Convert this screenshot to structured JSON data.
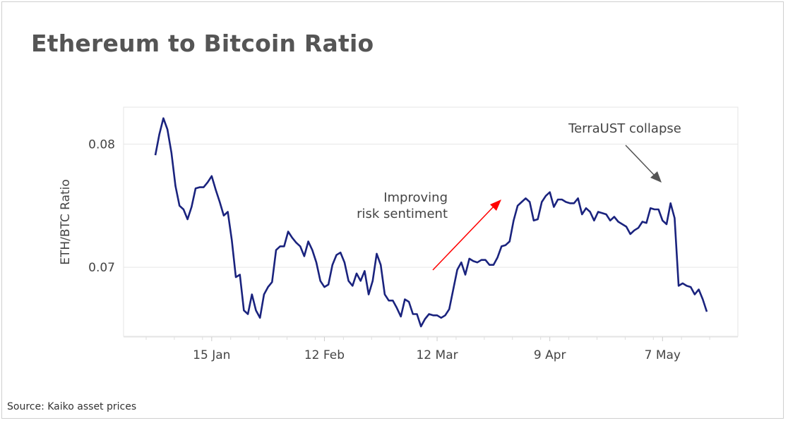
{
  "title": "Ethereum to Bitcoin Ratio",
  "source": "Source: Kaiko asset prices",
  "chart_data": {
    "type": "line",
    "title": "Ethereum to Bitcoin Ratio",
    "xlabel": "",
    "ylabel": "ETH/BTC Ratio",
    "ylim": [
      0.0644,
      0.083
    ],
    "yticks": [
      0.07,
      0.08
    ],
    "ytick_labels": [
      "0.07",
      "0.08"
    ],
    "xticks": [
      "15 Jan",
      "12 Feb",
      "12 Mar",
      "9 Apr",
      "7 May"
    ],
    "grid": "horizontal",
    "line_color": "#1a237e",
    "x": [
      "1 Jan",
      "2 Jan",
      "3 Jan",
      "4 Jan",
      "5 Jan",
      "6 Jan",
      "7 Jan",
      "8 Jan",
      "9 Jan",
      "10 Jan",
      "11 Jan",
      "12 Jan",
      "13 Jan",
      "14 Jan",
      "15 Jan",
      "16 Jan",
      "17 Jan",
      "18 Jan",
      "19 Jan",
      "20 Jan",
      "21 Jan",
      "22 Jan",
      "23 Jan",
      "24 Jan",
      "25 Jan",
      "26 Jan",
      "27 Jan",
      "28 Jan",
      "29 Jan",
      "30 Jan",
      "31 Jan",
      "1 Feb",
      "2 Feb",
      "3 Feb",
      "4 Feb",
      "5 Feb",
      "6 Feb",
      "7 Feb",
      "8 Feb",
      "9 Feb",
      "10 Feb",
      "11 Feb",
      "12 Feb",
      "13 Feb",
      "14 Feb",
      "15 Feb",
      "16 Feb",
      "17 Feb",
      "18 Feb",
      "19 Feb",
      "20 Feb",
      "21 Feb",
      "22 Feb",
      "23 Feb",
      "24 Feb",
      "25 Feb",
      "26 Feb",
      "27 Feb",
      "28 Feb",
      "1 Mar",
      "2 Mar",
      "3 Mar",
      "4 Mar",
      "5 Mar",
      "6 Mar",
      "7 Mar",
      "8 Mar",
      "9 Mar",
      "10 Mar",
      "11 Mar",
      "12 Mar",
      "13 Mar",
      "14 Mar",
      "15 Mar",
      "16 Mar",
      "17 Mar",
      "18 Mar",
      "19 Mar",
      "20 Mar",
      "21 Mar",
      "22 Mar",
      "23 Mar",
      "24 Mar",
      "25 Mar",
      "26 Mar",
      "27 Mar",
      "28 Mar",
      "29 Mar",
      "30 Mar",
      "31 Mar",
      "1 Apr",
      "2 Apr",
      "3 Apr",
      "4 Apr",
      "5 Apr",
      "6 Apr",
      "7 Apr",
      "8 Apr",
      "9 Apr",
      "10 Apr",
      "11 Apr",
      "12 Apr",
      "13 Apr",
      "14 Apr",
      "15 Apr",
      "16 Apr",
      "17 Apr",
      "18 Apr",
      "19 Apr",
      "20 Apr",
      "21 Apr",
      "22 Apr",
      "23 Apr",
      "24 Apr",
      "25 Apr",
      "26 Apr",
      "27 Apr",
      "28 Apr",
      "29 Apr",
      "30 Apr",
      "1 May",
      "2 May",
      "3 May",
      "4 May",
      "5 May",
      "6 May",
      "7 May",
      "8 May",
      "9 May",
      "10 May",
      "11 May",
      "12 May",
      "13 May",
      "14 May",
      "15 May",
      "16 May",
      "17 May",
      "18 May"
    ],
    "series": [
      {
        "values": [
          0.0791,
          0.0808,
          0.0821,
          0.0812,
          0.0793,
          0.0766,
          0.075,
          0.0747,
          0.0739,
          0.0749,
          0.0764,
          0.0765,
          0.0765,
          0.0769,
          0.0774,
          0.0763,
          0.0753,
          0.0742,
          0.0745,
          0.0722,
          0.0692,
          0.0694,
          0.0665,
          0.0662,
          0.0678,
          0.0665,
          0.0659,
          0.0678,
          0.0684,
          0.0688,
          0.0714,
          0.0717,
          0.0717,
          0.0729,
          0.0724,
          0.072,
          0.0717,
          0.0709,
          0.0721,
          0.0714,
          0.0704,
          0.0689,
          0.0684,
          0.0686,
          0.0702,
          0.071,
          0.0712,
          0.0704,
          0.0689,
          0.0685,
          0.0695,
          0.0689,
          0.0697,
          0.0678,
          0.0689,
          0.0711,
          0.0702,
          0.0678,
          0.0673,
          0.0673,
          0.0667,
          0.066,
          0.0674,
          0.0672,
          0.0662,
          0.0662,
          0.0652,
          0.0658,
          0.0662,
          0.0661,
          0.0661,
          0.0659,
          0.0661,
          0.0666,
          0.0682,
          0.0698,
          0.0704,
          0.0694,
          0.0707,
          0.0705,
          0.0704,
          0.0706,
          0.0706,
          0.0702,
          0.0702,
          0.0708,
          0.0717,
          0.0718,
          0.0721,
          0.0738,
          0.075,
          0.0753,
          0.0756,
          0.0753,
          0.0738,
          0.0739,
          0.0753,
          0.0758,
          0.0761,
          0.0749,
          0.0755,
          0.0755,
          0.0753,
          0.0752,
          0.0752,
          0.0756,
          0.0743,
          0.0748,
          0.0745,
          0.0738,
          0.0745,
          0.0744,
          0.0743,
          0.0738,
          0.0741,
          0.0737,
          0.0735,
          0.0733,
          0.0727,
          0.073,
          0.0732,
          0.0737,
          0.0736,
          0.0748,
          0.0747,
          0.0747,
          0.0738,
          0.0735,
          0.0752,
          0.074,
          0.0685,
          0.0687,
          0.0685,
          0.0684,
          0.0678,
          0.0682,
          0.0674,
          0.0664
        ]
      }
    ],
    "annotations": [
      {
        "text_lines": [
          "Improving",
          "risk sentiment"
        ],
        "arrow_color": "#ff0000"
      },
      {
        "text_lines": [
          "TerraUST collapse"
        ],
        "arrow_color": "#555555"
      }
    ]
  }
}
